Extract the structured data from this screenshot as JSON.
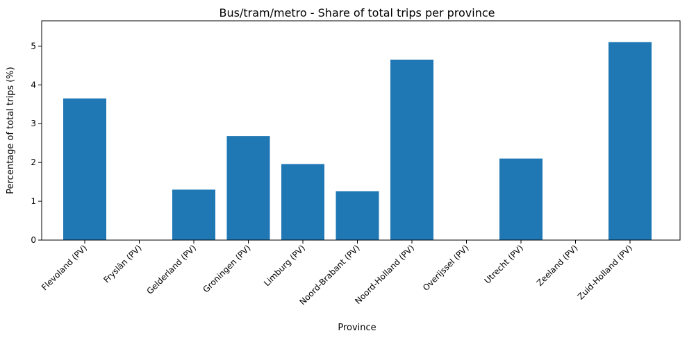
{
  "chart_data": {
    "type": "bar",
    "title": "Bus/tram/metro - Share of total trips per province",
    "xlabel": "Province",
    "ylabel": "Percentage of total trips (%)",
    "categories": [
      "Flevoland (PV)",
      "Fryslân (PV)",
      "Gelderland (PV)",
      "Groningen (PV)",
      "Limburg (PV)",
      "Noord-Brabant (PV)",
      "Noord-Holland (PV)",
      "Overijssel (PV)",
      "Utrecht (PV)",
      "Zeeland (PV)",
      "Zuid-Holland (PV)"
    ],
    "values": [
      3.65,
      0,
      1.3,
      2.68,
      1.96,
      1.26,
      4.65,
      0,
      2.1,
      0,
      5.1
    ],
    "yticks": [
      0,
      1,
      2,
      3,
      4,
      5
    ],
    "ylim": [
      0,
      5.65
    ],
    "bar_color": "#1f77b4",
    "grid": false
  }
}
